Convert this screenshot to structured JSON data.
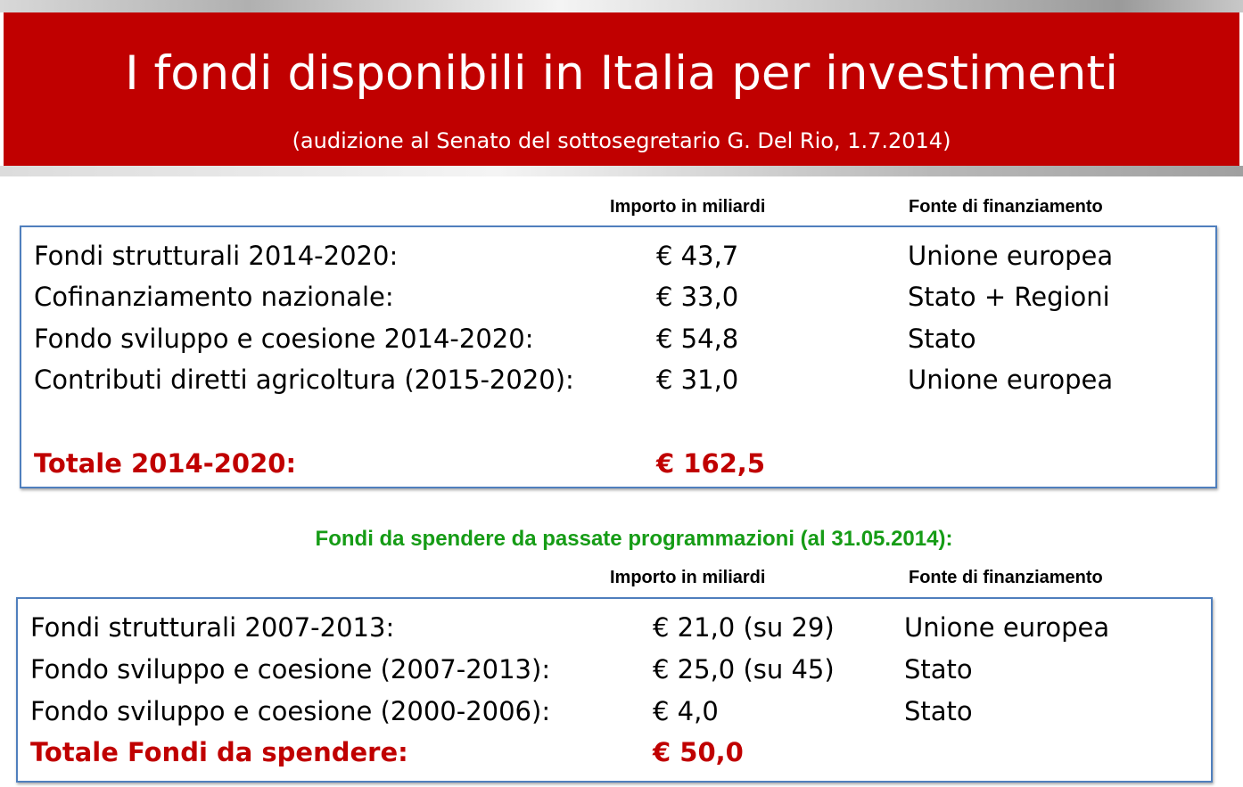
{
  "title": "I fondi disponibili in Italia per investimenti",
  "subtitle": "(audizione al Senato del sottosegretario G. Del Rio, 1.7.2014)",
  "table1": {
    "header_amount": "Importo in miliardi",
    "header_source": "Fonte di finanziamento",
    "rows": [
      {
        "label": "Fondi strutturali 2014-2020:",
        "amount": "€  43,7",
        "source": "Unione europea"
      },
      {
        "label": "Cofinanziamento nazionale:",
        "amount": "€  33,0",
        "source": "Stato + Regioni"
      },
      {
        "label": "Fondo sviluppo e coesione 2014-2020:",
        "amount": "€  54,8",
        "source": "Stato"
      },
      {
        "label": "Contributi diretti agricoltura (2015-2020):",
        "amount": "€  31,0",
        "source": "Unione europea"
      }
    ],
    "total": {
      "label": "Totale 2014-2020:",
      "amount": "€  162,5"
    }
  },
  "section2_title": "Fondi da spendere da passate programmazioni (al 31.05.2014):",
  "table2": {
    "header_amount": "Importo in miliardi",
    "header_source": "Fonte di finanziamento",
    "rows": [
      {
        "label": "Fondi strutturali 2007-2013:",
        "amount": "€  21,0 (su 29)",
        "source": "Unione europea"
      },
      {
        "label": "Fondo sviluppo e coesione (2007-2013):",
        "amount": "€  25,0 (su 45)",
        "source": "Stato"
      },
      {
        "label": "Fondo sviluppo e coesione (2000-2006):",
        "amount": "€    4,0",
        "source": "Stato"
      }
    ],
    "total": {
      "label": "Totale Fondi da spendere:",
      "amount": "€  50,0"
    }
  },
  "colors": {
    "banner": "#c00000",
    "total": "#c00000",
    "section_title": "#169c16",
    "box_border": "#4f7fbd"
  }
}
